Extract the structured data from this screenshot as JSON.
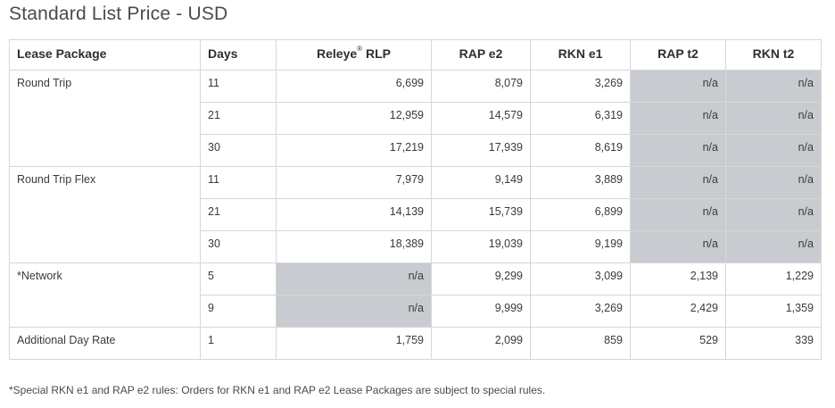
{
  "title": "Standard List Price - USD",
  "headers": {
    "lease_package": "Lease Package",
    "days": "Days",
    "releye_rlp_prefix": "Releye",
    "releye_rlp_sup": "®",
    "releye_rlp_suffix": " RLP",
    "rap_e2": "RAP e2",
    "rkn_e1": "RKN e1",
    "rap_t2": "RAP t2",
    "rkn_t2": "RKN t2"
  },
  "rows": [
    {
      "pkg": "Round Trip",
      "days": "11",
      "rlp": "6,699",
      "rap_e2": "8,079",
      "rkn_e1": "3,269",
      "rap_t2": "n/a",
      "rkn_t2": "n/a"
    },
    {
      "pkg": "",
      "days": "21",
      "rlp": "12,959",
      "rap_e2": "14,579",
      "rkn_e1": "6,319",
      "rap_t2": "n/a",
      "rkn_t2": "n/a"
    },
    {
      "pkg": "",
      "days": "30",
      "rlp": "17,219",
      "rap_e2": "17,939",
      "rkn_e1": "8,619",
      "rap_t2": "n/a",
      "rkn_t2": "n/a"
    },
    {
      "pkg": "Round Trip Flex",
      "days": "11",
      "rlp": "7,979",
      "rap_e2": "9,149",
      "rkn_e1": "3,889",
      "rap_t2": "n/a",
      "rkn_t2": "n/a"
    },
    {
      "pkg": "",
      "days": "21",
      "rlp": "14,139",
      "rap_e2": "15,739",
      "rkn_e1": "6,899",
      "rap_t2": "n/a",
      "rkn_t2": "n/a"
    },
    {
      "pkg": "",
      "days": "30",
      "rlp": "18,389",
      "rap_e2": "19,039",
      "rkn_e1": "9,199",
      "rap_t2": "n/a",
      "rkn_t2": "n/a"
    },
    {
      "pkg": "*Network",
      "days": "5",
      "rlp": "n/a",
      "rap_e2": "9,299",
      "rkn_e1": "3,099",
      "rap_t2": "2,139",
      "rkn_t2": "1,229"
    },
    {
      "pkg": "",
      "days": "9",
      "rlp": "n/a",
      "rap_e2": "9,999",
      "rkn_e1": "3,269",
      "rap_t2": "2,429",
      "rkn_t2": "1,359"
    },
    {
      "pkg": "Additional Day Rate",
      "days": "1",
      "rlp": "1,759",
      "rap_e2": "2,099",
      "rkn_e1": "859",
      "rap_t2": "529",
      "rkn_t2": "339"
    }
  ],
  "footnote": "*Special RKN e1 and RAP e2 rules: Orders for RKN e1 and RAP e2 Lease Packages are subject to special rules.",
  "colors": {
    "na_cell": "#c8ccd1",
    "border": "#d7d7d7",
    "text": "#3a3a3a"
  }
}
